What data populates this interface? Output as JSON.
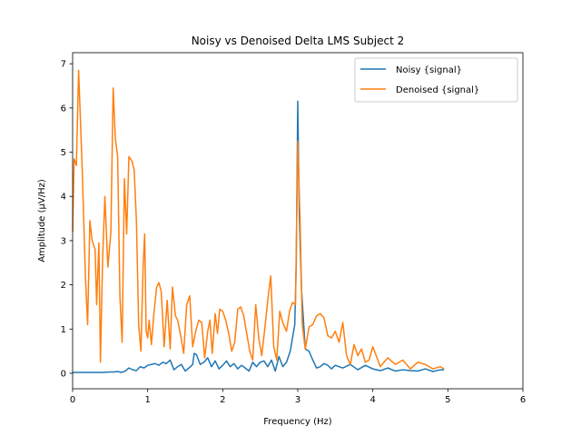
{
  "chart_data": {
    "type": "line",
    "title": "Noisy vs Denoised Delta LMS Subject 2",
    "xlabel": "Frequency (Hz)",
    "ylabel": "Amplitude (μV/Hz)",
    "xlim": [
      0,
      6
    ],
    "ylim": [
      -0.35,
      7.25
    ],
    "xticks": [
      "0",
      "1",
      "2",
      "3",
      "4",
      "5",
      "6"
    ],
    "yticks": [
      "0",
      "1",
      "2",
      "3",
      "4",
      "5",
      "6",
      "7"
    ],
    "grid": false,
    "legend_position": "top-right",
    "series": [
      {
        "name": "Noisy {signal}",
        "color": "#1f77b4",
        "x": [
          0,
          0.1,
          0.2,
          0.3,
          0.4,
          0.5,
          0.55,
          0.6,
          0.65,
          0.7,
          0.75,
          0.8,
          0.85,
          0.9,
          0.95,
          1.0,
          1.05,
          1.1,
          1.15,
          1.2,
          1.25,
          1.3,
          1.35,
          1.4,
          1.45,
          1.5,
          1.55,
          1.6,
          1.62,
          1.65,
          1.7,
          1.75,
          1.8,
          1.85,
          1.9,
          1.95,
          2.0,
          2.05,
          2.1,
          2.15,
          2.2,
          2.25,
          2.3,
          2.35,
          2.4,
          2.45,
          2.5,
          2.55,
          2.6,
          2.65,
          2.7,
          2.75,
          2.8,
          2.85,
          2.9,
          2.93,
          2.96,
          2.98,
          3.0,
          3.02,
          3.05,
          3.1,
          3.15,
          3.2,
          3.25,
          3.3,
          3.35,
          3.4,
          3.45,
          3.5,
          3.6,
          3.7,
          3.8,
          3.9,
          4.0,
          4.1,
          4.2,
          4.3,
          4.4,
          4.5,
          4.6,
          4.7,
          4.8,
          4.9,
          4.95
        ],
        "y": [
          0.02,
          0.02,
          0.02,
          0.02,
          0.02,
          0.03,
          0.03,
          0.04,
          0.02,
          0.05,
          0.12,
          0.08,
          0.06,
          0.15,
          0.12,
          0.18,
          0.2,
          0.22,
          0.18,
          0.25,
          0.22,
          0.3,
          0.08,
          0.15,
          0.2,
          0.05,
          0.12,
          0.2,
          0.45,
          0.42,
          0.2,
          0.25,
          0.35,
          0.15,
          0.28,
          0.1,
          0.18,
          0.28,
          0.15,
          0.22,
          0.1,
          0.18,
          0.12,
          0.05,
          0.25,
          0.15,
          0.25,
          0.28,
          0.15,
          0.3,
          0.05,
          0.38,
          0.15,
          0.25,
          0.5,
          0.8,
          1.1,
          2.5,
          6.15,
          3.6,
          1.9,
          0.55,
          0.5,
          0.3,
          0.12,
          0.15,
          0.22,
          0.18,
          0.1,
          0.18,
          0.12,
          0.2,
          0.08,
          0.18,
          0.1,
          0.06,
          0.12,
          0.05,
          0.08,
          0.06,
          0.05,
          0.1,
          0.04,
          0.08,
          0.08
        ]
      },
      {
        "name": "Denoised {signal}",
        "color": "#ff7f0e",
        "x": [
          0,
          0.02,
          0.05,
          0.08,
          0.13,
          0.17,
          0.2,
          0.23,
          0.26,
          0.3,
          0.32,
          0.35,
          0.37,
          0.4,
          0.43,
          0.47,
          0.51,
          0.54,
          0.57,
          0.6,
          0.63,
          0.66,
          0.69,
          0.72,
          0.75,
          0.79,
          0.82,
          0.85,
          0.88,
          0.91,
          0.94,
          0.96,
          0.98,
          1.0,
          1.02,
          1.05,
          1.08,
          1.12,
          1.15,
          1.18,
          1.22,
          1.26,
          1.3,
          1.33,
          1.37,
          1.4,
          1.44,
          1.48,
          1.52,
          1.56,
          1.6,
          1.64,
          1.68,
          1.72,
          1.76,
          1.8,
          1.83,
          1.86,
          1.9,
          1.93,
          1.96,
          2.0,
          2.04,
          2.08,
          2.12,
          2.16,
          2.2,
          2.24,
          2.28,
          2.32,
          2.36,
          2.4,
          2.44,
          2.48,
          2.52,
          2.56,
          2.6,
          2.64,
          2.68,
          2.72,
          2.76,
          2.8,
          2.85,
          2.89,
          2.93,
          2.97,
          3.0,
          3.03,
          3.06,
          3.1,
          3.15,
          3.2,
          3.25,
          3.3,
          3.35,
          3.4,
          3.45,
          3.5,
          3.55,
          3.6,
          3.65,
          3.7,
          3.75,
          3.8,
          3.85,
          3.9,
          3.95,
          4.0,
          4.1,
          4.2,
          4.3,
          4.4,
          4.5,
          4.6,
          4.7,
          4.8,
          4.9,
          4.95
        ],
        "y": [
          3.2,
          4.85,
          4.7,
          6.85,
          4.5,
          2.2,
          1.1,
          3.45,
          3.0,
          2.8,
          1.55,
          2.95,
          0.25,
          2.6,
          4.0,
          2.4,
          3.2,
          6.45,
          5.3,
          4.9,
          1.75,
          0.7,
          4.4,
          3.15,
          4.9,
          4.8,
          4.6,
          3.45,
          1.1,
          0.5,
          2.45,
          3.15,
          0.95,
          0.8,
          1.2,
          0.65,
          1.3,
          1.95,
          2.05,
          1.85,
          0.6,
          1.65,
          0.55,
          1.95,
          1.3,
          1.2,
          0.85,
          0.45,
          1.55,
          1.75,
          0.6,
          0.95,
          1.2,
          1.15,
          0.35,
          0.95,
          1.2,
          0.45,
          1.35,
          0.9,
          1.45,
          1.4,
          1.2,
          0.9,
          0.5,
          0.7,
          1.45,
          1.5,
          1.3,
          0.9,
          0.5,
          0.3,
          1.55,
          0.8,
          0.4,
          1.0,
          1.65,
          2.2,
          0.6,
          0.3,
          1.4,
          1.15,
          0.95,
          1.4,
          1.6,
          1.55,
          5.25,
          3.5,
          1.1,
          0.55,
          1.05,
          1.1,
          1.3,
          1.35,
          1.25,
          0.85,
          0.8,
          0.95,
          0.7,
          1.15,
          0.4,
          0.2,
          0.65,
          0.4,
          0.55,
          0.25,
          0.3,
          0.6,
          0.15,
          0.35,
          0.2,
          0.3,
          0.1,
          0.25,
          0.2,
          0.1,
          0.15,
          0.1
        ]
      }
    ]
  }
}
